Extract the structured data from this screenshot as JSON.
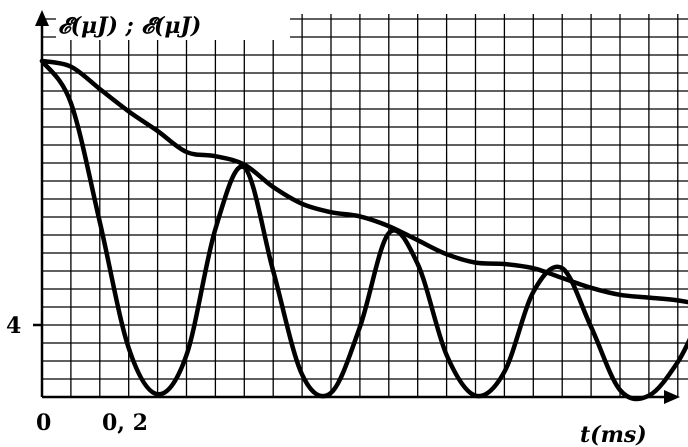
{
  "chart_data": {
    "type": "line",
    "ylabel": "𝓔(μJ) ; 𝓔(μJ)",
    "xlabel": "t(ms)",
    "xlim": [
      0,
      1.7
    ],
    "ylim": [
      0,
      24
    ],
    "x_tick_labels": [
      {
        "x": 0,
        "label": "0"
      },
      {
        "x": 0.2,
        "label": "0, 2"
      }
    ],
    "y_tick_labels": [
      {
        "y": 4,
        "label": "4"
      }
    ],
    "grid": true,
    "series": [
      {
        "x": [
          0,
          0.05,
          0.1,
          0.15,
          0.2,
          0.25,
          0.3,
          0.35,
          0.4,
          0.45,
          0.5,
          0.55,
          0.6,
          0.65,
          0.7,
          0.75,
          0.8,
          0.85,
          0.9,
          0.95,
          1.0,
          1.05,
          1.1,
          1.15,
          1.2,
          1.25,
          1.3,
          1.35,
          1.4,
          1.45,
          1.5,
          1.55,
          1.6,
          1.65,
          1.7
        ],
        "values": [
          24,
          23.6,
          22.0,
          20.4,
          19.0,
          17.5,
          17.2,
          16.6,
          15.0,
          13.8,
          13.2,
          12.9,
          12.2,
          11.2,
          10.2,
          9.6,
          9.5,
          9.2,
          8.5,
          7.8,
          7.3,
          7.1,
          6.9,
          6.5,
          6.0,
          5.6,
          5.4,
          5.3,
          5.0,
          4.6,
          4.3,
          4.1,
          4.0,
          3.9,
          3.8
        ]
      },
      {
        "x": [
          0,
          0.05,
          0.1,
          0.15,
          0.2,
          0.25,
          0.3,
          0.35,
          0.4,
          0.45,
          0.5,
          0.55,
          0.6,
          0.65,
          0.7,
          0.75,
          0.8,
          0.85,
          0.9,
          0.95,
          1.0,
          1.05,
          1.1,
          1.15,
          1.2,
          1.25,
          1.3,
          1.35,
          1.4,
          1.45,
          1.5,
          1.55,
          1.6,
          1.65,
          1.7
        ],
        "values": [
          24,
          21.0,
          12.5,
          3.5,
          0.2,
          3.0,
          12.0,
          16.4,
          9.0,
          1.6,
          0.3,
          5.0,
          11.7,
          9.5,
          3.0,
          0.1,
          1.8,
          7.5,
          9.2,
          5.0,
          0.5,
          0.1,
          2.5,
          6.2,
          6.5,
          2.8,
          0.1,
          0.2,
          3.0,
          4.8,
          3.6,
          0.8,
          0.0,
          1.0,
          3.8
        ]
      }
    ]
  }
}
